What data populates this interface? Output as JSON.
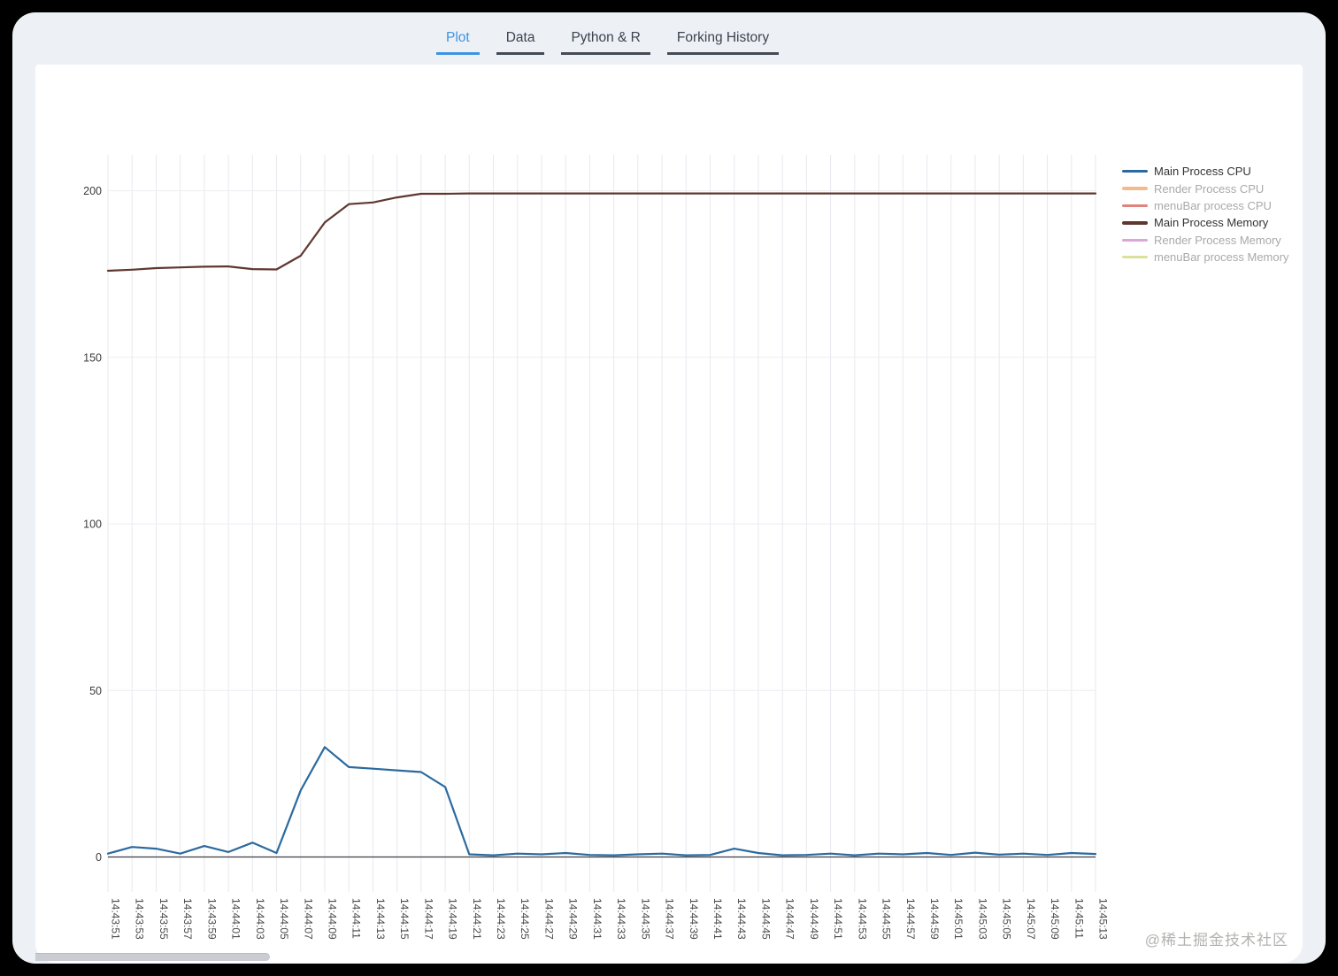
{
  "tabs": {
    "items": [
      {
        "label": "Plot",
        "active": true
      },
      {
        "label": "Data",
        "active": false
      },
      {
        "label": "Python & R",
        "active": false
      },
      {
        "label": "Forking History",
        "active": false
      }
    ]
  },
  "chart_data": {
    "type": "line",
    "title": "",
    "xlabel": "",
    "ylabel": "",
    "y_ticks": [
      0,
      50,
      100,
      150,
      200
    ],
    "ylim": [
      -10,
      210
    ],
    "grid": true,
    "legend_position": "right-top",
    "categories": [
      "14:43:51",
      "14:43:53",
      "14:43:55",
      "14:43:57",
      "14:43:59",
      "14:44:01",
      "14:44:03",
      "14:44:05",
      "14:44:07",
      "14:44:09",
      "14:44:11",
      "14:44:13",
      "14:44:15",
      "14:44:17",
      "14:44:19",
      "14:44:21",
      "14:44:23",
      "14:44:25",
      "14:44:27",
      "14:44:29",
      "14:44:31",
      "14:44:33",
      "14:44:35",
      "14:44:37",
      "14:44:39",
      "14:44:41",
      "14:44:43",
      "14:44:45",
      "14:44:47",
      "14:44:49",
      "14:44:51",
      "14:44:53",
      "14:44:55",
      "14:44:57",
      "14:44:59",
      "14:45:01",
      "14:45:03",
      "14:45:05",
      "14:45:07",
      "14:45:09",
      "14:45:11",
      "14:45:13"
    ],
    "series": [
      {
        "name": "Main Process CPU",
        "color": "#2b6a9f",
        "visible": true,
        "values": [
          1,
          3,
          2.5,
          1,
          3.3,
          1.5,
          4.3,
          1.2,
          20,
          33,
          27,
          26.5,
          26,
          25.5,
          21,
          0.8,
          0.5,
          1,
          0.8,
          1.2,
          0.6,
          0.5,
          0.8,
          1,
          0.5,
          0.6,
          2.5,
          1.2,
          0.5,
          0.6,
          1,
          0.5,
          1,
          0.8,
          1.2,
          0.6,
          1.3,
          0.7,
          1,
          0.6,
          1.2,
          0.9
        ]
      },
      {
        "name": "Render Process CPU",
        "color": "#f3bb8d",
        "visible": false,
        "values": []
      },
      {
        "name": "menuBar process CPU",
        "color": "#e2827c",
        "visible": false,
        "values": []
      },
      {
        "name": "Main Process Memory",
        "color": "#5f372f",
        "visible": true,
        "values": [
          176,
          176.3,
          176.8,
          177,
          177.2,
          177.3,
          176.5,
          176.4,
          180.5,
          190.5,
          196,
          196.5,
          198,
          199.1,
          199.1,
          199.2,
          199.2,
          199.2,
          199.2,
          199.2,
          199.2,
          199.2,
          199.2,
          199.2,
          199.2,
          199.2,
          199.2,
          199.2,
          199.2,
          199.2,
          199.2,
          199.2,
          199.2,
          199.2,
          199.2,
          199.2,
          199.2,
          199.2,
          199.2,
          199.2,
          199.2,
          199.2
        ]
      },
      {
        "name": "Render Process Memory",
        "color": "#d9a8d6",
        "visible": false,
        "values": []
      },
      {
        "name": "menuBar process Memory",
        "color": "#d9e19a",
        "visible": false,
        "values": []
      }
    ]
  },
  "watermark": "@稀土掘金技术社区"
}
